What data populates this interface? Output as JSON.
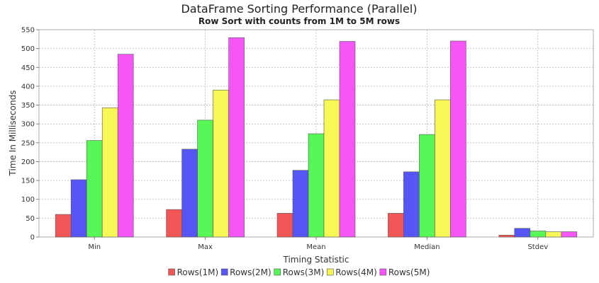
{
  "chart_data": {
    "type": "bar",
    "title": "DataFrame Sorting Performance (Parallel)",
    "subtitle": "Row Sort with counts from 1M to 5M rows",
    "xlabel": "Timing Statistic",
    "ylabel": "Time In Milliseconds",
    "ylim": [
      0,
      550
    ],
    "yticks": [
      0,
      50,
      100,
      150,
      200,
      250,
      300,
      350,
      400,
      450,
      500,
      550
    ],
    "grid": true,
    "legend_position": "bottom",
    "categories": [
      "Min",
      "Max",
      "Mean",
      "Median",
      "Stdev"
    ],
    "series": [
      {
        "name": "Rows(1M)",
        "color": "#f25656",
        "values": [
          60,
          73,
          63,
          63,
          5
        ]
      },
      {
        "name": "Rows(2M)",
        "color": "#5656f7",
        "values": [
          152,
          233,
          177,
          173,
          23
        ]
      },
      {
        "name": "Rows(3M)",
        "color": "#56f756",
        "values": [
          256,
          310,
          274,
          272,
          16
        ]
      },
      {
        "name": "Rows(4M)",
        "color": "#f7f756",
        "values": [
          343,
          390,
          364,
          364,
          14
        ]
      },
      {
        "name": "Rows(5M)",
        "color": "#f756f7",
        "values": [
          485,
          529,
          519,
          520,
          14
        ]
      }
    ]
  }
}
